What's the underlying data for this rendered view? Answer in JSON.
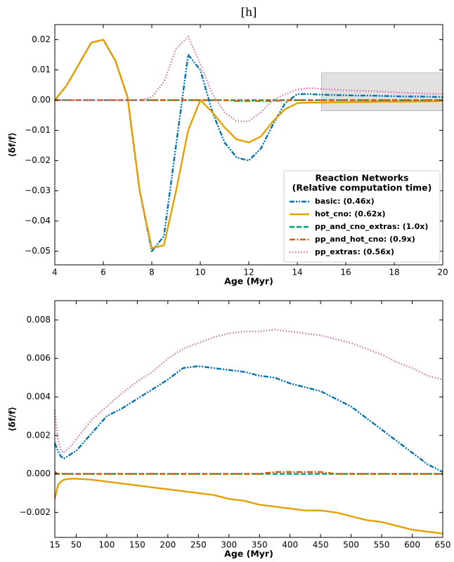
{
  "chart_data": [
    {
      "type": "line",
      "title": "[h]",
      "x_label": "Age (Myr)",
      "y_label": "⟨δf/f⟩",
      "xlim": [
        4,
        20
      ],
      "xticks": [
        4,
        6,
        8,
        10,
        12,
        14,
        16,
        18,
        20
      ],
      "ylim": [
        -0.0545,
        0.025
      ],
      "yticks": [
        {
          "value": -0.05,
          "label": "−0.05"
        },
        {
          "value": -0.04,
          "label": "−0.04"
        },
        {
          "value": -0.03,
          "label": "−0.03"
        },
        {
          "value": -0.02,
          "label": "−0.02"
        },
        {
          "value": -0.01,
          "label": "−0.01"
        },
        {
          "value": 0,
          "label": "0.00"
        },
        0.01,
        0.02
      ],
      "highlight": {
        "xlim": [
          15,
          20
        ],
        "ylim": [
          -0.0035,
          0.009
        ],
        "color": "#d9d9d9"
      },
      "legend": "lower right",
      "legend_title": [
        "Reaction Networks",
        "(Relative computation time)"
      ],
      "x": [
        4,
        4.5,
        5,
        5.5,
        6,
        6.5,
        7,
        7.5,
        8,
        8.5,
        9,
        9.5,
        10,
        10.5,
        11,
        11.5,
        12,
        12.5,
        13,
        13.5,
        14,
        14.5,
        15,
        15.5,
        16,
        16.5,
        17,
        17.5,
        18,
        18.5,
        19,
        19.5,
        20
      ],
      "series": [
        {
          "name": "basic:  (0.46x)",
          "color": "#0072b2",
          "linestyle": "dashdotdot",
          "values": [
            0,
            0.005,
            0.012,
            0.019,
            0.02,
            0.013,
            0.001,
            -0.03,
            -0.05,
            -0.045,
            -0.015,
            0.015,
            0.01,
            -0.004,
            -0.014,
            -0.019,
            -0.02,
            -0.016,
            -0.008,
            -0.001,
            0.002,
            0.002,
            0.0018,
            0.0017,
            0.0016,
            0.0015,
            0.0015,
            0.0014,
            0.0013,
            0.0012,
            0.0012,
            0.0011,
            0.001
          ]
        },
        {
          "name": "hot_cno:  (0.62x)",
          "color": "#e69f00",
          "linestyle": "solid",
          "values": [
            0,
            0.005,
            0.012,
            0.019,
            0.02,
            0.013,
            0.001,
            -0.03,
            -0.049,
            -0.048,
            -0.03,
            -0.01,
            0.0,
            -0.004,
            -0.009,
            -0.013,
            -0.014,
            -0.012,
            -0.007,
            -0.003,
            -0.001,
            -0.0008,
            -0.0008,
            -0.0007,
            -0.0007,
            -0.0006,
            -0.0006,
            -0.0005,
            -0.0005,
            -0.0005,
            -0.0004,
            -0.0004,
            -0.0003
          ]
        },
        {
          "name": "pp_and_cno_extras:  (1.0x)",
          "color": "#009e73",
          "linestyle": "dashed",
          "values": [
            0,
            0,
            0,
            0,
            0,
            0,
            0,
            0,
            0,
            0,
            0,
            0,
            0,
            0,
            0,
            0,
            0,
            0,
            0,
            0,
            0,
            0,
            0,
            0,
            0,
            0,
            0,
            0,
            0,
            0,
            0,
            0,
            0
          ]
        },
        {
          "name": "pp_and_hot_cno:  (0.9x)",
          "color": "#d55e00",
          "linestyle": "dashdot",
          "values": [
            0,
            0,
            0,
            0,
            0,
            0,
            0,
            0,
            0,
            0,
            0,
            0,
            0,
            0,
            0,
            -0.0003,
            -0.0003,
            -0.0003,
            -0.0003,
            0,
            0,
            0,
            0,
            0,
            0,
            0,
            0,
            0,
            0,
            0,
            0,
            0,
            0
          ]
        },
        {
          "name": "pp_extras:  (0.56x)",
          "color": "#cc79a7",
          "linestyle": "dotted",
          "values": [
            0,
            0,
            0,
            0,
            0,
            0,
            0,
            0,
            0.001,
            0.006,
            0.017,
            0.021,
            0.012,
            0.002,
            -0.004,
            -0.007,
            -0.007,
            -0.004,
            0.0,
            0.002,
            0.0035,
            0.004,
            0.0037,
            0.0035,
            0.0033,
            0.0031,
            0.003,
            0.0028,
            0.0026,
            0.0024,
            0.0023,
            0.0021,
            0.002
          ]
        }
      ]
    },
    {
      "type": "line",
      "x_label": "Age (Myr)",
      "y_label": "⟨δf/f⟩",
      "xlim": [
        15,
        650
      ],
      "xticks": [
        15,
        50,
        100,
        150,
        200,
        250,
        300,
        350,
        400,
        450,
        500,
        550,
        600,
        650
      ],
      "ylim": [
        -0.0033,
        0.009
      ],
      "yticks": [
        {
          "value": -0.002,
          "label": "−0.002"
        },
        {
          "value": 0,
          "label": "0.000"
        },
        0.002,
        0.004,
        0.006,
        0.008
      ],
      "x": [
        15,
        20,
        25,
        30,
        40,
        50,
        75,
        100,
        125,
        150,
        175,
        200,
        225,
        250,
        275,
        300,
        325,
        350,
        375,
        400,
        425,
        450,
        475,
        500,
        525,
        550,
        575,
        600,
        625,
        650
      ],
      "series": [
        {
          "color": "#0072b2",
          "linestyle": "dashdotdot",
          "values": [
            0.0016,
            0.0012,
            0.0009,
            0.0008,
            0.001,
            0.0012,
            0.0021,
            0.003,
            0.0034,
            0.0039,
            0.0044,
            0.0049,
            0.0055,
            0.0056,
            0.0055,
            0.0054,
            0.0053,
            0.0051,
            0.005,
            0.0047,
            0.0045,
            0.0043,
            0.0039,
            0.0035,
            0.0029,
            0.0023,
            0.0017,
            0.0011,
            0.0005,
            0.0001
          ]
        },
        {
          "color": "#e69f00",
          "linestyle": "solid",
          "values": [
            -0.0013,
            -0.0006,
            -0.0004,
            -0.0003,
            -0.00025,
            -0.00025,
            -0.0003,
            -0.0004,
            -0.0005,
            -0.0006,
            -0.0007,
            -0.0008,
            -0.0009,
            -0.001,
            -0.0011,
            -0.0013,
            -0.0014,
            -0.0016,
            -0.0017,
            -0.0018,
            -0.0019,
            -0.0019,
            -0.002,
            -0.0022,
            -0.0024,
            -0.0025,
            -0.0027,
            -0.0029,
            -0.003,
            -0.0031
          ]
        },
        {
          "color": "#009e73",
          "linestyle": "dashed",
          "values": [
            0,
            0,
            0,
            0,
            0,
            0,
            0,
            0,
            0,
            0,
            0,
            0,
            0,
            0,
            0,
            0,
            0,
            0,
            0,
            0,
            0,
            0,
            0,
            0,
            0,
            0,
            0,
            0,
            0,
            0
          ]
        },
        {
          "color": "#d55e00",
          "linestyle": "dashdot",
          "values": [
            0.0001,
            0,
            0,
            0,
            0,
            0,
            0,
            0,
            0,
            0,
            0,
            0,
            0,
            0,
            0,
            0,
            0,
            0,
            0.0001,
            0.0001,
            0.0001,
            0.0001,
            0,
            0,
            0,
            0,
            0,
            0,
            0,
            0
          ]
        },
        {
          "color": "#cc79a7",
          "linestyle": "dotted",
          "values": [
            0.0033,
            0.0018,
            0.0012,
            0.0011,
            0.0014,
            0.0018,
            0.0028,
            0.0035,
            0.0042,
            0.0048,
            0.0053,
            0.006,
            0.0065,
            0.0068,
            0.0071,
            0.0073,
            0.0074,
            0.0074,
            0.0075,
            0.0074,
            0.0073,
            0.0072,
            0.007,
            0.0068,
            0.0065,
            0.0062,
            0.0058,
            0.0055,
            0.0051,
            0.0049
          ]
        }
      ]
    }
  ]
}
